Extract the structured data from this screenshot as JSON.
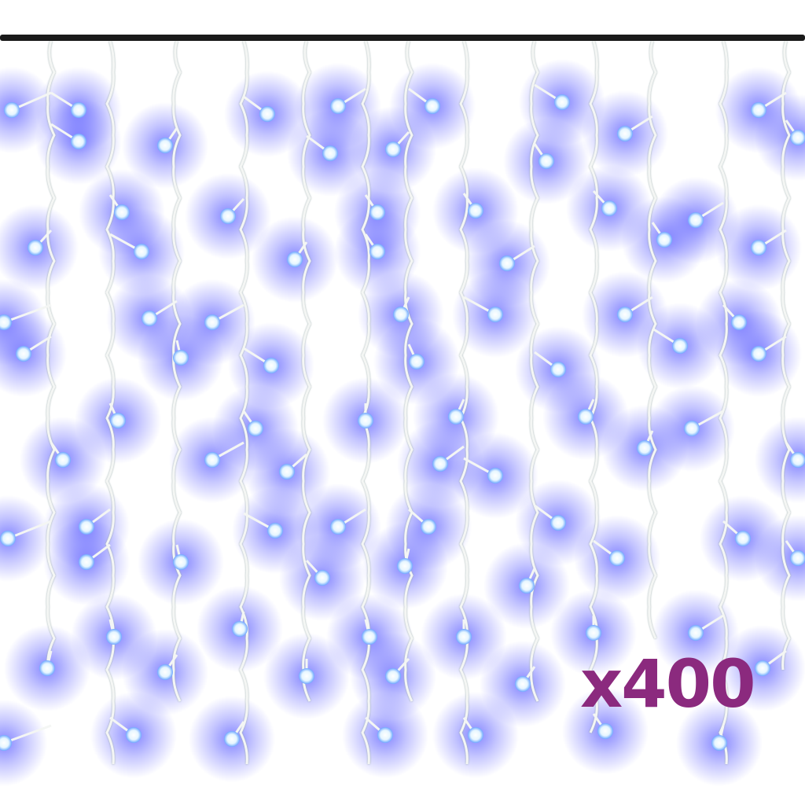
{
  "product": {
    "label": "x400",
    "label_color": "#8B2A7E",
    "led_color": "#5a5cff",
    "led_core_color": "#e6f6ff",
    "wire_color": "#f4f6f4",
    "rod_color": "#1a1a1a"
  }
}
